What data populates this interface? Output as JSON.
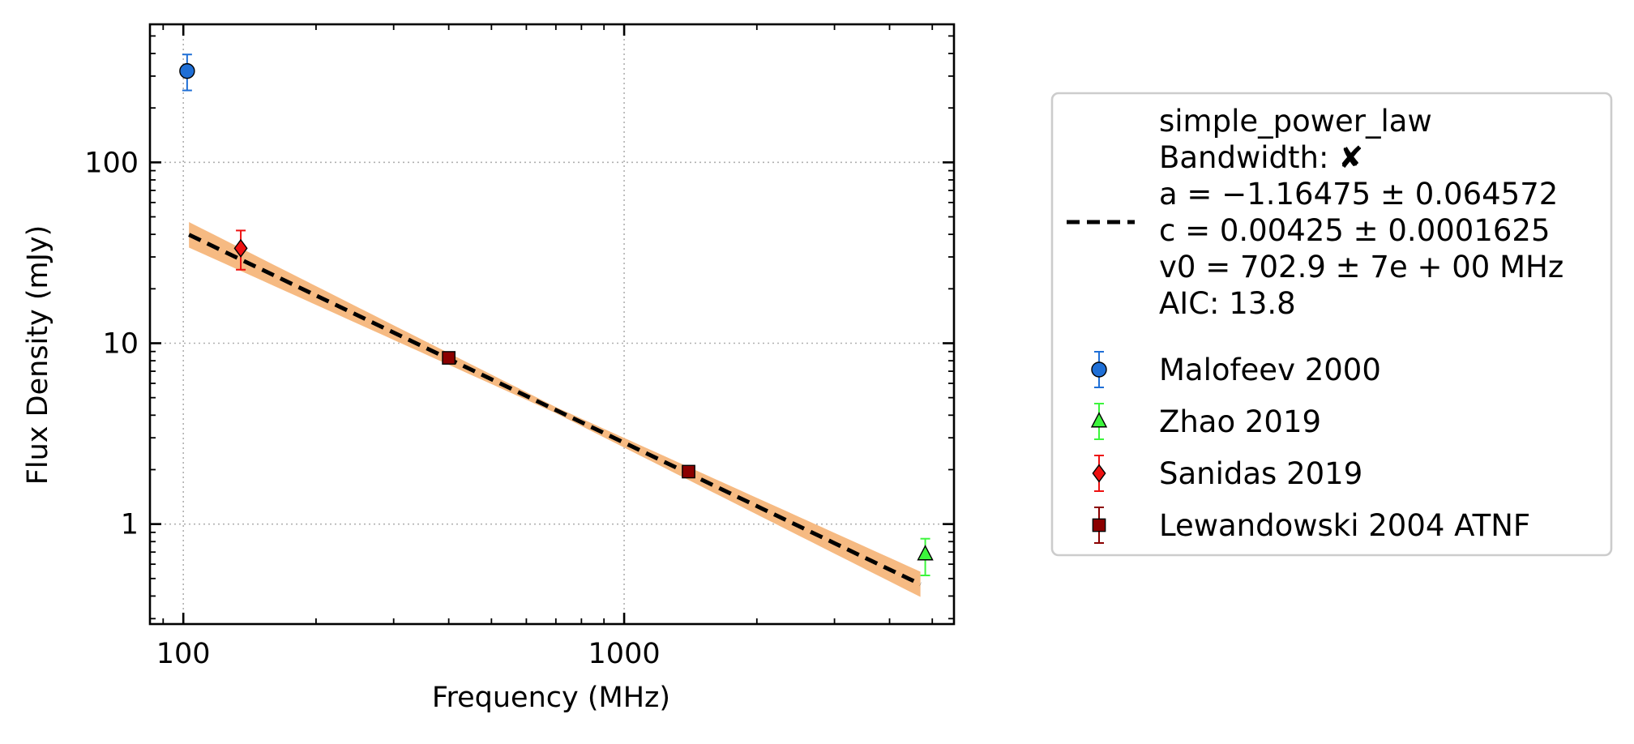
{
  "chart_data": {
    "type": "scatter",
    "xlabel": "Frequency (MHz)",
    "ylabel": "Flux Density (mJy)",
    "xscale": "log",
    "yscale": "log",
    "xlim": [
      84,
      5600
    ],
    "ylim": [
      0.28,
      580
    ],
    "x_ticks": [
      {
        "value": 100,
        "label": "100"
      },
      {
        "value": 1000,
        "label": "1000"
      }
    ],
    "y_ticks": [
      {
        "value": 1,
        "label": "1"
      },
      {
        "value": 10,
        "label": "10"
      },
      {
        "value": 100,
        "label": "100"
      }
    ],
    "grid": true,
    "legend_position": "outside-right",
    "fit": {
      "model": "simple_power_law",
      "lines": [
        "simple_power_law",
        "Bandwidth: ✘",
        "a = −1.16475 ± 0.064572",
        "c = 0.00425 ± 0.0001625",
        "v0 = 702.9 ± 7e + 00 MHz",
        "AIC: 13.8"
      ],
      "a": -1.16475,
      "a_err": 0.064572,
      "c": 0.00425,
      "c_err": 0.0001625,
      "v0": 702.9,
      "x_range": [
        103,
        4700
      ],
      "line_color": "#000000",
      "band_color": "#f6ba82"
    },
    "series": [
      {
        "name": "Malofeev 2000",
        "marker": "circle",
        "color": "#1f6fd6",
        "error_color": "#1f6fd6",
        "points": [
          {
            "x": 102,
            "y": 320,
            "ylo": 250,
            "yhi": 395
          }
        ]
      },
      {
        "name": "Zhao 2019",
        "marker": "triangle",
        "color": "#3cf53c",
        "error_color": "#3cf53c",
        "points": [
          {
            "x": 4820,
            "y": 0.68,
            "ylo": 0.52,
            "yhi": 0.83
          }
        ]
      },
      {
        "name": "Sanidas 2019",
        "marker": "diamond",
        "color": "#ee1111",
        "error_color": "#ee1111",
        "points": [
          {
            "x": 135,
            "y": 33.5,
            "ylo": 25.5,
            "yhi": 42
          }
        ]
      },
      {
        "name": "Lewandowski 2004 ATNF",
        "marker": "square",
        "color": "#8b0000",
        "error_color": "#8b0000",
        "points": [
          {
            "x": 400,
            "y": 8.3,
            "ylo": 8.3,
            "yhi": 8.3
          },
          {
            "x": 1400,
            "y": 1.95,
            "ylo": 1.95,
            "yhi": 1.95
          }
        ]
      }
    ]
  }
}
